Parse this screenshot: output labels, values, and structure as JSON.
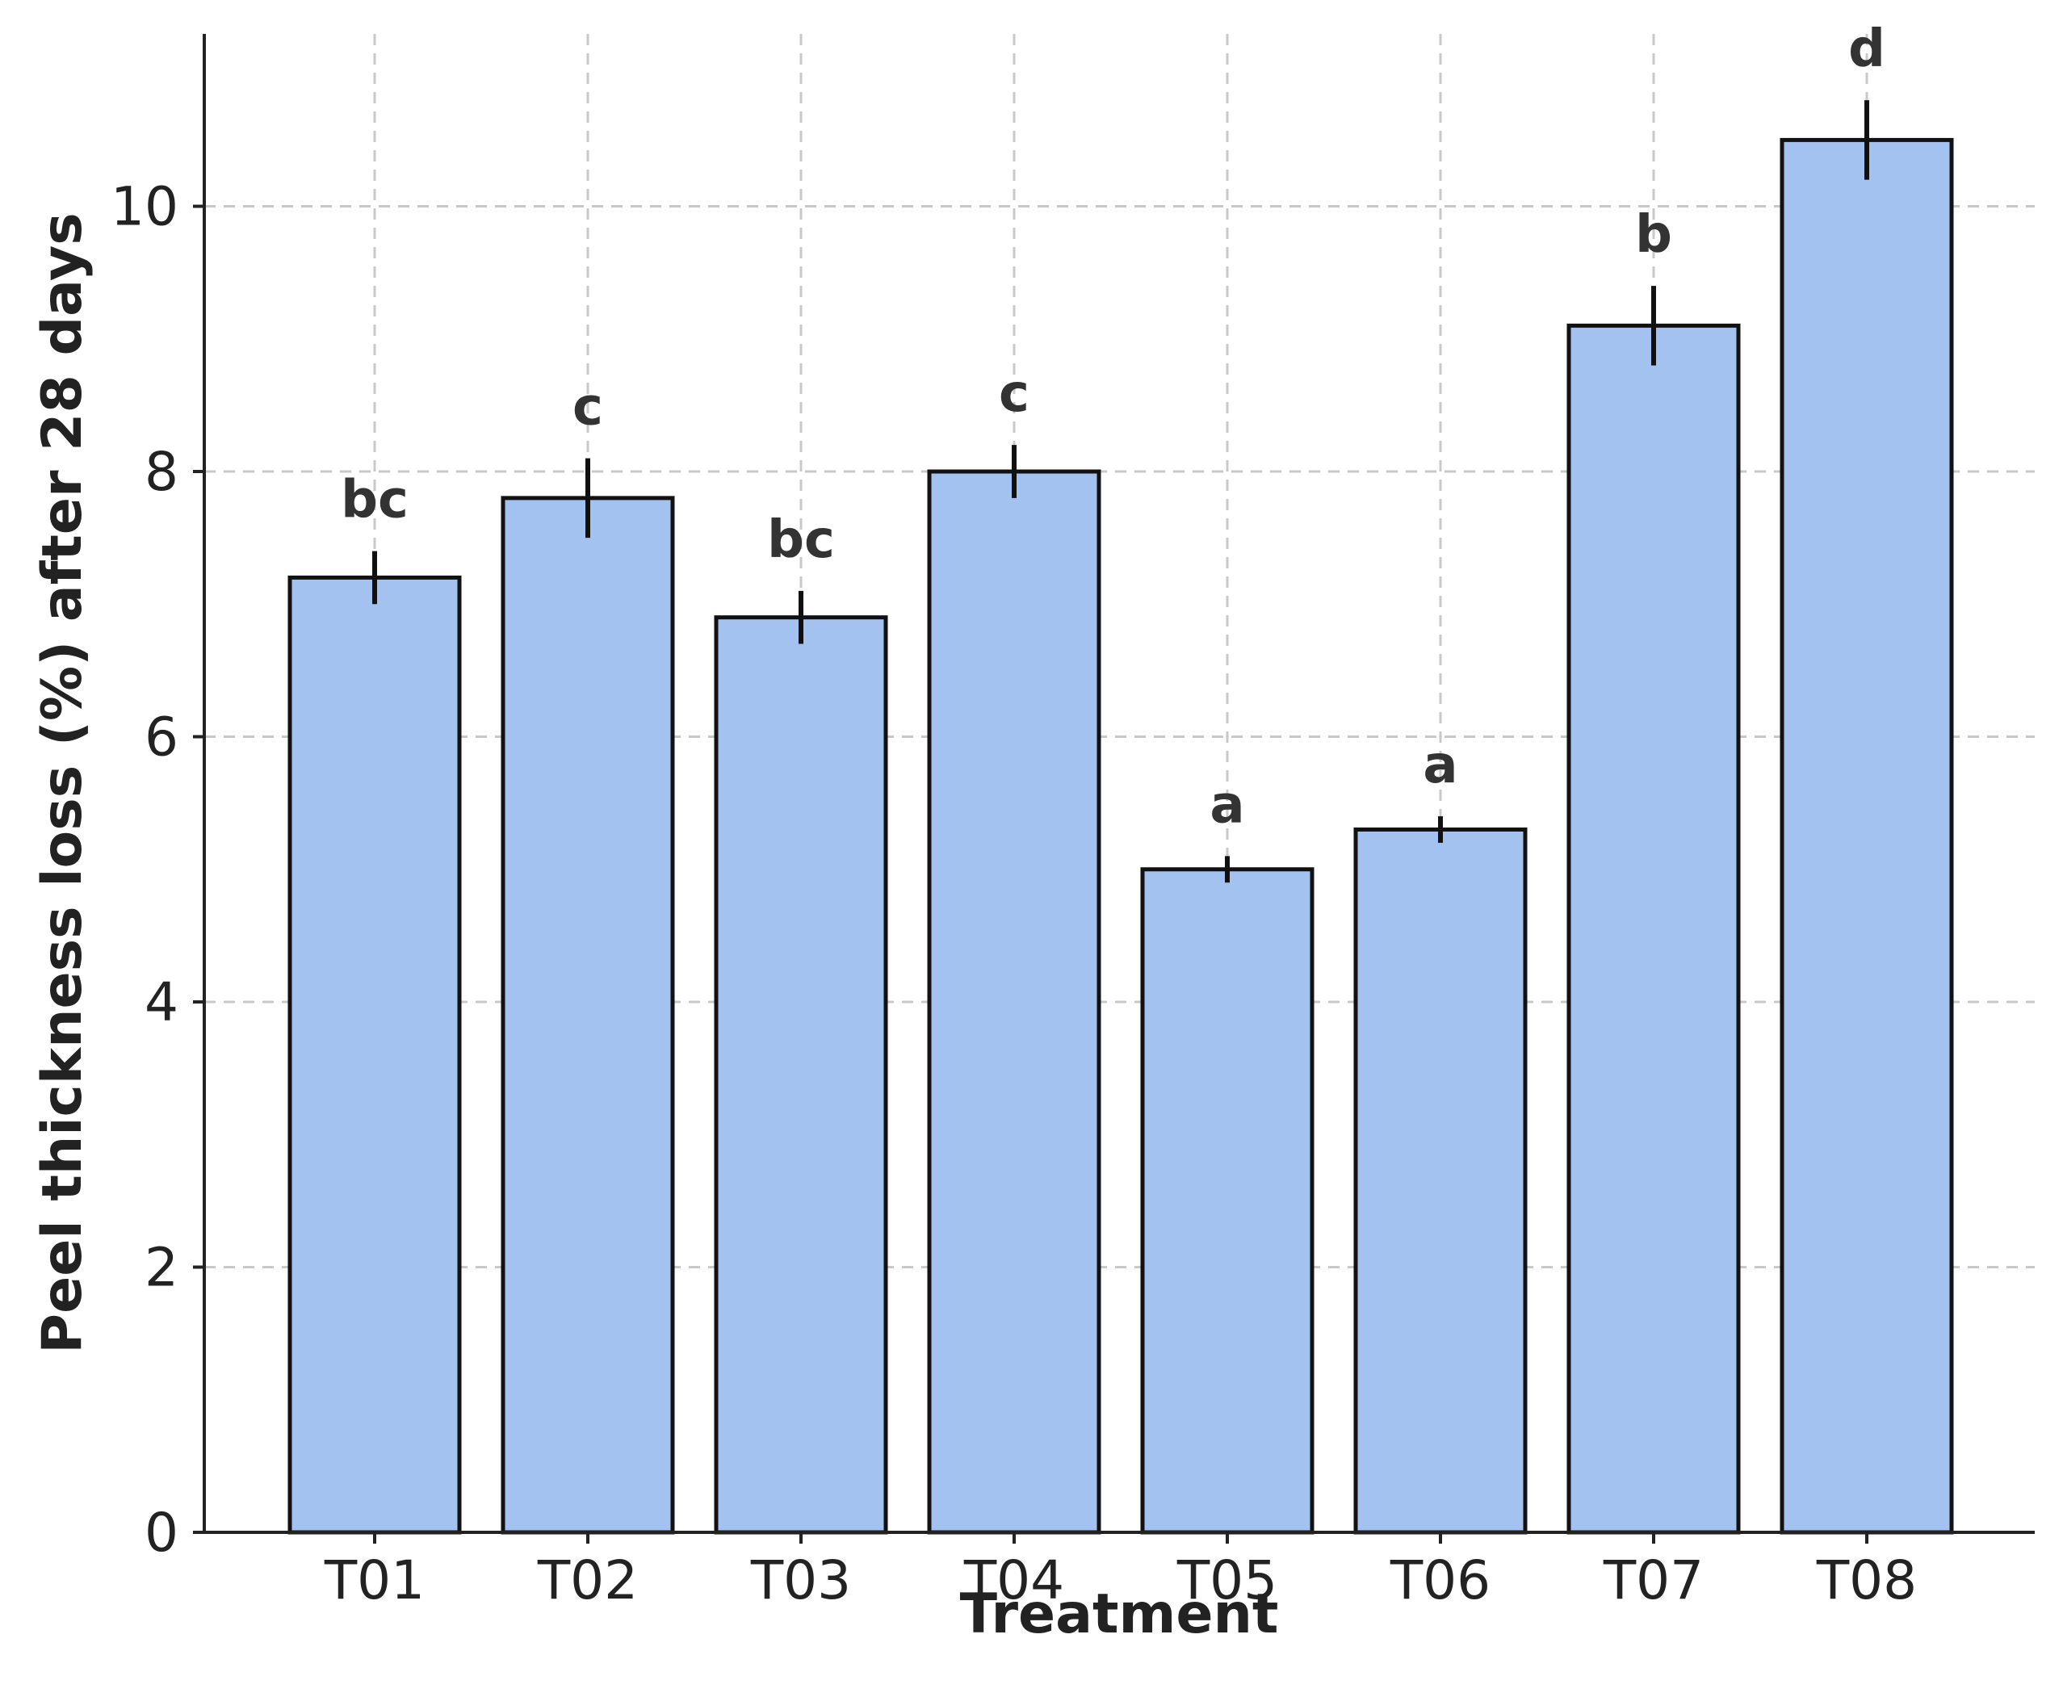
{
  "chart_data": {
    "type": "bar",
    "title": "",
    "xlabel": "Treatment",
    "ylabel": "Peel thickness loss (%) after 28 days",
    "categories": [
      "T01",
      "T02",
      "T03",
      "T04",
      "T05",
      "T06",
      "T07",
      "T08"
    ],
    "values": [
      7.2,
      7.8,
      6.9,
      8.0,
      5.0,
      5.3,
      9.1,
      10.5
    ],
    "errors": [
      0.2,
      0.3,
      0.2,
      0.2,
      0.1,
      0.1,
      0.3,
      0.3
    ],
    "significance_letters": [
      "bc",
      "c",
      "bc",
      "c",
      "a",
      "a",
      "b",
      "d"
    ],
    "ylim": [
      0,
      11.3
    ],
    "yticks": [
      0,
      2,
      4,
      6,
      8,
      10
    ],
    "grid": true,
    "bar_color": "#a3c2f0",
    "edge_color": "#111111"
  }
}
